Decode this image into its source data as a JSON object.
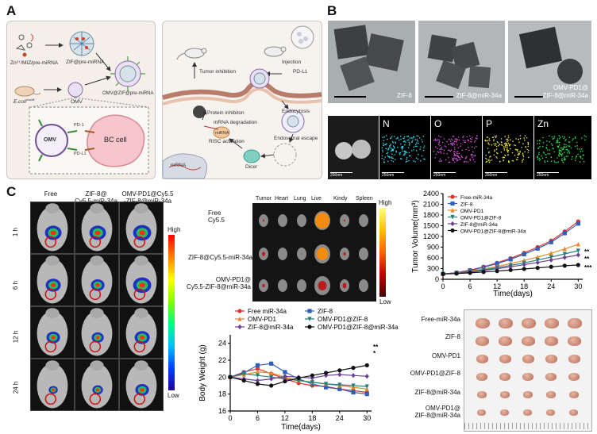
{
  "panels": {
    "a": "A",
    "b": "B",
    "c": "C"
  },
  "schematic": {
    "left": {
      "reagent_label": "Zn²⁺/MIZ/pre-miRNA",
      "zif_label": "ZIF@pre-miRNA",
      "omv_zif_label": "OMV@ZIF@pre-miRNA",
      "ecoli_label": "E.coli",
      "ecoli_superscript": "msbB⁻",
      "omv_label": "OMV",
      "omv_circle_label": "OMV",
      "pd1_label": "PD-1",
      "pdl1_label": "PD-L1",
      "bc_cell_label": "BC cell"
    },
    "right": {
      "tumor_inhibition": "Tumor inhibition",
      "injection": "Injection",
      "pdl1": "PD-L1",
      "protein_inhibition": "Protein inhibiton",
      "endocytosis": "Endocytosis",
      "mrna_degradation": "mRNA degradation",
      "risc_activation": "RISC activation",
      "endosomal_escape": "Endosomal escape",
      "mirna": "miRNA",
      "dicer": "Dicer",
      "mrna": "mRNA"
    }
  },
  "tem": {
    "images": [
      "ZIF-8",
      "ZIF-8@miR-34a",
      "OMV-PD1@\nZIF-8@miR-34a"
    ]
  },
  "elemental_maps": {
    "elements": [
      "",
      "N",
      "O",
      "P",
      "Zn"
    ],
    "scale_label": "250nm",
    "colors": [
      "#bbbbbb",
      "#2fd6e8",
      "#d14fd6",
      "#e5e02a",
      "#2bdc4d"
    ]
  },
  "imaging": {
    "columns": [
      "Free",
      "ZIF-8@\nCy5.5-miR-34a",
      "OMV-PD1@Cy5.5\n-ZIF-8@miR-34a"
    ],
    "rows": [
      "1 h",
      "6 h",
      "12 h",
      "24 h"
    ],
    "colorbar_high": "High",
    "colorbar_low": "Low"
  },
  "organs": {
    "headers": [
      "Tumor",
      "Heart",
      "Lung",
      "Live",
      "Kindy",
      "Spleen"
    ],
    "rows": [
      "Free\nCy5.5",
      "ZIF-8@Cy5.5-miR-34a",
      "OMV-PD1@\nCy5.5-ZIF-8@miR-34a"
    ],
    "colorbar_high": "High",
    "colorbar_low": "Low"
  },
  "tumor_photo": {
    "rows": [
      "Free-miR-34a",
      "ZIF-8",
      "OMV-PD1",
      "OMV-PD1@ZIF-8",
      "ZIF-8@miR-34a",
      "OMV-PD1@\nZIF-8@miR-34a"
    ]
  },
  "chart_data": [
    {
      "type": "line",
      "title": "",
      "xlabel": "Time(days)",
      "ylabel": "Tumor Volume(mm³)",
      "x": [
        0,
        3,
        6,
        9,
        12,
        15,
        18,
        21,
        24,
        27,
        30
      ],
      "xticks": [
        0,
        6,
        12,
        18,
        24,
        30
      ],
      "yticks": [
        0,
        300,
        600,
        900,
        1200,
        1500,
        1800,
        2100,
        2400
      ],
      "xlim": [
        0,
        31
      ],
      "ylim": [
        0,
        2400
      ],
      "legend_position": "top-left",
      "significance": [
        "**",
        "**",
        "***"
      ],
      "series": [
        {
          "name": "Free-miR-34a",
          "color": "#e0312d",
          "marker": "circle",
          "values": [
            150,
            190,
            260,
            350,
            460,
            590,
            740,
            900,
            1080,
            1340,
            1620
          ]
        },
        {
          "name": "ZIF-8",
          "color": "#2f5fb8",
          "marker": "square",
          "values": [
            150,
            185,
            250,
            335,
            440,
            560,
            700,
            860,
            1040,
            1290,
            1560
          ]
        },
        {
          "name": "OMV-PD1",
          "color": "#e8892a",
          "marker": "triangle",
          "values": [
            150,
            180,
            230,
            290,
            360,
            440,
            530,
            620,
            730,
            850,
            980
          ]
        },
        {
          "name": "OMV-PD1@ZIF-8",
          "color": "#2a7f7a",
          "marker": "triangle-down",
          "values": [
            150,
            175,
            215,
            265,
            325,
            390,
            460,
            540,
            620,
            710,
            800
          ]
        },
        {
          "name": "ZIF-8@miR-34a",
          "color": "#6a3f96",
          "marker": "diamond",
          "values": [
            150,
            170,
            205,
            245,
            295,
            350,
            410,
            470,
            540,
            610,
            680
          ]
        },
        {
          "name": "OMV-PD1@ZIF-8@miR-34a",
          "color": "#111111",
          "marker": "circle",
          "values": [
            150,
            160,
            180,
            205,
            230,
            260,
            290,
            320,
            350,
            380,
            400
          ]
        }
      ]
    },
    {
      "type": "line",
      "title": "",
      "xlabel": "Time(days)",
      "ylabel": "Body Weight (g)",
      "x": [
        0,
        3,
        6,
        9,
        12,
        15,
        18,
        21,
        24,
        27,
        30
      ],
      "xticks": [
        0,
        6,
        12,
        18,
        24,
        30
      ],
      "yticks": [
        16,
        18,
        20,
        22,
        24
      ],
      "xlim": [
        0,
        31
      ],
      "ylim": [
        16,
        25
      ],
      "legend_position": "top",
      "significance": [
        "**",
        "*"
      ],
      "series": [
        {
          "name": "Free miR-34a",
          "color": "#e0312d",
          "marker": "circle",
          "values": [
            20.0,
            20.6,
            21.0,
            20.4,
            19.8,
            19.3,
            19.0,
            18.9,
            18.6,
            18.4,
            18.2
          ]
        },
        {
          "name": "ZIF-8",
          "color": "#2f5fb8",
          "marker": "square",
          "values": [
            20.0,
            20.5,
            21.4,
            21.6,
            20.6,
            19.8,
            19.2,
            18.8,
            18.6,
            18.2,
            18.0
          ]
        },
        {
          "name": "OMV-PD1",
          "color": "#e8892a",
          "marker": "triangle",
          "values": [
            20.0,
            20.3,
            20.6,
            20.5,
            20.0,
            19.6,
            19.4,
            19.2,
            19.0,
            18.8,
            18.6
          ]
        },
        {
          "name": "OMV-PD1@ZIF-8",
          "color": "#2a7f7a",
          "marker": "triangle-down",
          "values": [
            20.0,
            20.4,
            20.2,
            20.0,
            19.8,
            19.6,
            19.4,
            19.2,
            19.1,
            19.0,
            18.9
          ]
        },
        {
          "name": "ZIF-8@miR-34a",
          "color": "#6a3f96",
          "marker": "diamond",
          "values": [
            20.0,
            19.8,
            19.6,
            19.8,
            20.1,
            20.0,
            19.9,
            20.2,
            20.3,
            20.2,
            20.1
          ]
        },
        {
          "name": "OMV-PD1@ZIF-8@miR-34a",
          "color": "#111111",
          "marker": "circle",
          "values": [
            20.0,
            19.6,
            19.2,
            19.0,
            19.5,
            19.9,
            20.2,
            20.5,
            20.8,
            21.1,
            21.4
          ]
        }
      ]
    }
  ]
}
